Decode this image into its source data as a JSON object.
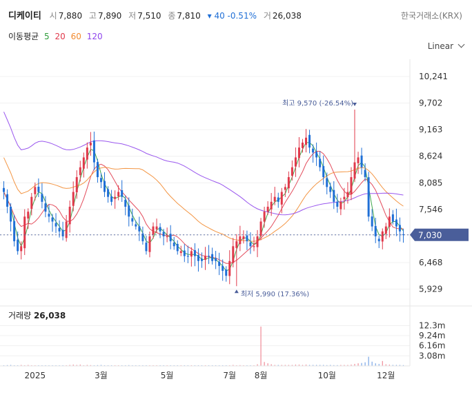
{
  "header": {
    "name": "디케이티",
    "open_label": "시",
    "open": "7,880",
    "high_label": "고",
    "high": "7,890",
    "low_label": "저",
    "low": "7,510",
    "close_label": "종",
    "close": "7,810",
    "change": "▾ 40 -0.51%",
    "volume_label": "거",
    "volume": "26,038",
    "exchange": "한국거래소(KRX)"
  },
  "ma_legend": {
    "label": "이동평균",
    "p5": "5",
    "p20": "20",
    "p60": "60",
    "p120": "120"
  },
  "scale_label": "Linear",
  "volume_panel": {
    "label": "거래량",
    "value": "26,038"
  },
  "colors": {
    "up": "#e0384a",
    "down": "#1f6fd6",
    "ma5": "#2e9d3a",
    "ma20": "#e0384a",
    "ma60": "#f28a2f",
    "ma120": "#8e44ec",
    "current_badge": "#4a5e9a",
    "annotation": "#4a5e9a"
  },
  "chart_data": {
    "type": "candlestick",
    "y_ticks": [
      "10,241",
      "9,702",
      "9,163",
      "8,624",
      "8,085",
      "7,546",
      "7,030",
      "6,468",
      "5,929"
    ],
    "y_tick_values": [
      10241,
      9702,
      9163,
      8624,
      8085,
      7546,
      7030,
      6468,
      5929
    ],
    "ylim": [
      5700,
      10450
    ],
    "x_ticks": [
      "2025",
      "3월",
      "5월",
      "7월",
      "8월",
      "10월",
      "12월"
    ],
    "x_tick_index": [
      9,
      28,
      47,
      65,
      74,
      93,
      110
    ],
    "current_price": "7,030",
    "current_value": 7030,
    "high_annotation": {
      "text": "최고 9,570 (-26.54%)",
      "value": 9570,
      "index": 101
    },
    "low_annotation": {
      "text": "최저 5,990 (17.36%)",
      "value": 5990,
      "index": 67
    },
    "close": [
      7900,
      7600,
      7300,
      6900,
      6700,
      6800,
      7400,
      7500,
      7800,
      8000,
      7900,
      7700,
      7500,
      7400,
      7300,
      7200,
      7100,
      7000,
      7300,
      7600,
      7900,
      8200,
      8400,
      8600,
      8800,
      8900,
      8500,
      8200,
      8100,
      7900,
      7800,
      7700,
      7800,
      7900,
      7800,
      7600,
      7400,
      7300,
      7200,
      7100,
      6900,
      6700,
      7000,
      7200,
      7200,
      7100,
      7000,
      7000,
      6900,
      6800,
      6700,
      6700,
      6600,
      6600,
      6700,
      6600,
      6500,
      6500,
      6600,
      6600,
      6500,
      6500,
      6400,
      6300,
      6200,
      6500,
      6800,
      6900,
      7000,
      7000,
      6900,
      6800,
      6800,
      7000,
      7300,
      7500,
      7600,
      7700,
      7800,
      7700,
      7900,
      8000,
      8200,
      8400,
      8600,
      8800,
      8900,
      9000,
      8800,
      8700,
      8600,
      8400,
      8200,
      8000,
      7900,
      7700,
      7600,
      7700,
      7800,
      7900,
      8200,
      8500,
      8600,
      8400,
      8200,
      7400,
      7200,
      7000,
      6900,
      7100,
      7200,
      7400,
      7300,
      7200,
      7100,
      7030
    ],
    "volume_ticks": [
      "12.3m",
      "9.24m",
      "6.16m",
      "3.08m"
    ],
    "volume_tick_values": [
      12.3,
      9.24,
      6.16,
      3.08
    ],
    "volume_max": 14.5,
    "volume_m": [
      0.2,
      0.25,
      0.3,
      0.2,
      0.2,
      0.3,
      0.2,
      0.3,
      0.2,
      0.2,
      0.2,
      0.2,
      0.2,
      0.2,
      0.2,
      0.2,
      0.2,
      0.2,
      0.2,
      0.3,
      0.4,
      0.3,
      0.4,
      0.2,
      0.3,
      0.25,
      0.2,
      0.25,
      0.3,
      0.2,
      0.2,
      0.2,
      0.2,
      0.2,
      0.2,
      0.2,
      0.25,
      0.2,
      0.2,
      0.2,
      0.2,
      0.2,
      0.2,
      0.2,
      0.2,
      0.2,
      0.2,
      0.2,
      0.2,
      0.2,
      0.2,
      0.2,
      0.2,
      0.2,
      0.2,
      0.2,
      0.2,
      0.2,
      0.2,
      0.2,
      0.2,
      0.2,
      0.2,
      0.2,
      0.2,
      0.2,
      0.3,
      0.2,
      0.25,
      0.2,
      0.2,
      0.2,
      0.2,
      0.5,
      12.0,
      1.2,
      0.8,
      0.5,
      0.3,
      0.3,
      0.3,
      0.3,
      0.3,
      0.3,
      0.4,
      0.4,
      0.3,
      0.4,
      0.3,
      0.3,
      0.3,
      0.3,
      0.3,
      0.25,
      0.3,
      0.25,
      0.25,
      0.3,
      0.3,
      0.3,
      0.4,
      0.6,
      0.8,
      0.9,
      1.1,
      2.8,
      1.3,
      0.8,
      0.6,
      1.5,
      0.5,
      0.4,
      0.3,
      0.3,
      0.3,
      0.25
    ]
  }
}
